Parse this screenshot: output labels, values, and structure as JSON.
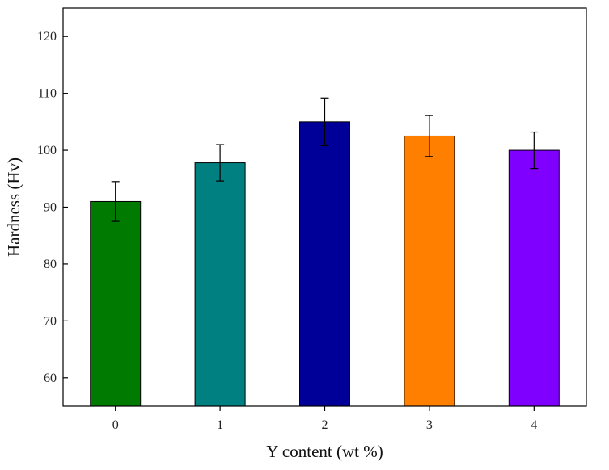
{
  "chart_data": {
    "type": "bar",
    "title": "",
    "xlabel": "Y content (wt %)",
    "ylabel": "Hardness (Hv)",
    "categories": [
      "0",
      "1",
      "2",
      "3",
      "4"
    ],
    "values": [
      91.0,
      97.8,
      105.0,
      102.5,
      100.0
    ],
    "errors": [
      3.5,
      3.2,
      4.2,
      3.6,
      3.2
    ],
    "colors": [
      "#007a00",
      "#008080",
      "#000099",
      "#ff8000",
      "#8000ff"
    ],
    "ylim": [
      55,
      125
    ],
    "yticks": [
      60,
      70,
      80,
      90,
      100,
      110,
      120
    ],
    "grid": false,
    "legend": "none"
  }
}
